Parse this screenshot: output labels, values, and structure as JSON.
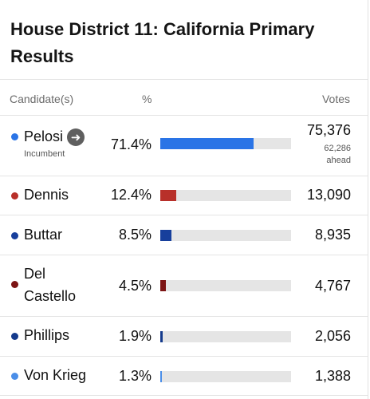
{
  "header": {
    "title": "House District 11: California Primary Results"
  },
  "columns": {
    "candidates": "Candidate(s)",
    "percent": "%",
    "votes": "Votes"
  },
  "candidates": [
    {
      "name": "Pelosi",
      "status": "Incumbent",
      "percent": "71.4%",
      "share": 71.4,
      "votes": "75,376",
      "lead_votes": "62,286",
      "lead_word": "ahead",
      "color": "#2a74e6"
    },
    {
      "name": "Dennis",
      "percent": "12.4%",
      "share": 12.4,
      "votes": "13,090",
      "color": "#b8302a"
    },
    {
      "name": "Buttar",
      "percent": "8.5%",
      "share": 8.5,
      "votes": "8,935",
      "color": "#173f9c"
    },
    {
      "name_line1": "Del",
      "name_line2": "Castello",
      "percent": "4.5%",
      "share": 4.5,
      "votes": "4,767",
      "color": "#7c1414"
    },
    {
      "name": "Phillips",
      "percent": "1.9%",
      "share": 1.9,
      "votes": "2,056",
      "color": "#143a8c"
    },
    {
      "name": "Von Krieg",
      "percent": "1.3%",
      "share": 1.3,
      "votes": "1,388",
      "color": "#4a8ee8"
    }
  ]
}
